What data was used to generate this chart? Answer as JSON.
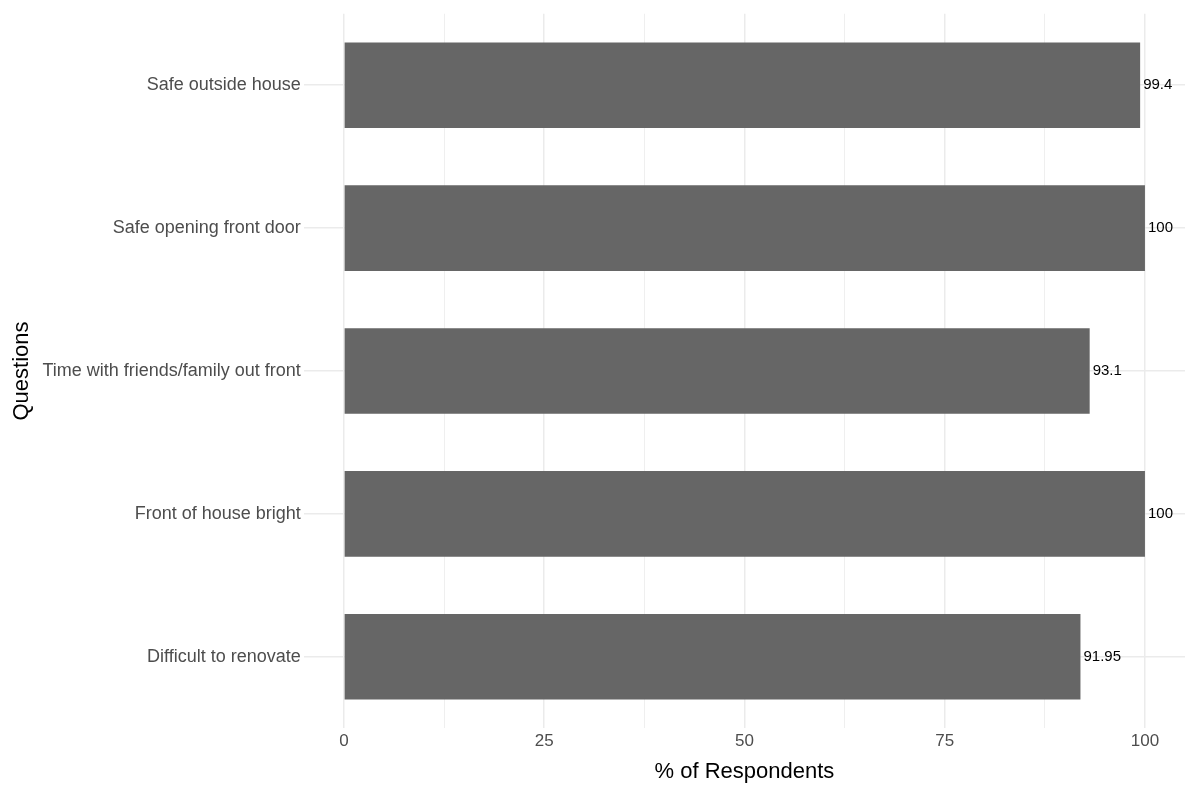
{
  "chart_data": {
    "type": "bar",
    "orientation": "horizontal",
    "xlabel": "% of Respondents",
    "ylabel": "Questions",
    "categories": [
      "Safe outside house",
      "Safe opening front door",
      "Time with friends/family out front",
      "Front of house bright",
      "Difficult to renovate"
    ],
    "values": [
      99.4,
      100,
      93.1,
      100,
      91.95
    ],
    "color": "#666666",
    "xlim": [
      -5,
      105
    ],
    "xticks": [
      0,
      {
        "value": 12.5,
        "label": null
      },
      25,
      {
        "value": 37.5,
        "label": null
      },
      50,
      {
        "value": 62.5,
        "label": null
      },
      75,
      {
        "value": 87.5,
        "label": null
      },
      100
    ],
    "grid": true,
    "legend": false,
    "data_labels": true
  }
}
